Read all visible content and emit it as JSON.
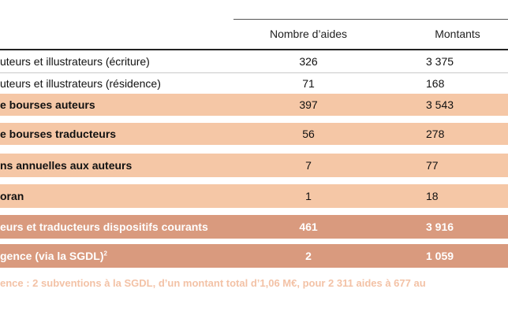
{
  "table": {
    "headers": {
      "nombre": "Nombre d’aides",
      "montants": "Montants"
    },
    "rows": [
      {
        "label": "uteurs et illustrateurs (écriture)",
        "nombre": "326",
        "montant": "3 375",
        "style": "plain"
      },
      {
        "label": "uteurs et illustrateurs (résidence)",
        "nombre": "71",
        "montant": "168",
        "style": "plain"
      },
      {
        "label": "e bourses auteurs",
        "nombre": "397",
        "montant": "3 543",
        "style": "light"
      },
      {
        "label": "e bourses traducteurs",
        "nombre": "56",
        "montant": "278",
        "style": "light"
      },
      {
        "label": "ns annuelles aux auteurs",
        "nombre": "7",
        "montant": "77",
        "style": "light"
      },
      {
        "label": "oran",
        "nombre": "1",
        "montant": "18",
        "style": "light"
      },
      {
        "label": "eurs et traducteurs dispositifs courants",
        "nombre": "461",
        "montant": "3 916",
        "style": "dark"
      },
      {
        "label": "gence (via la SGDL)",
        "label_sup": "2",
        "nombre": "2",
        "montant": "1 059",
        "style": "dark"
      }
    ]
  },
  "footnote": "ence : 2 subventions à la SGDL, d’un montant total d’1,06 M€, pour 2 311 aides à 677 au",
  "colors": {
    "light_row": "#f5c7a6",
    "dark_row": "#d99a7e",
    "footnote_text": "#f3c2a6"
  }
}
